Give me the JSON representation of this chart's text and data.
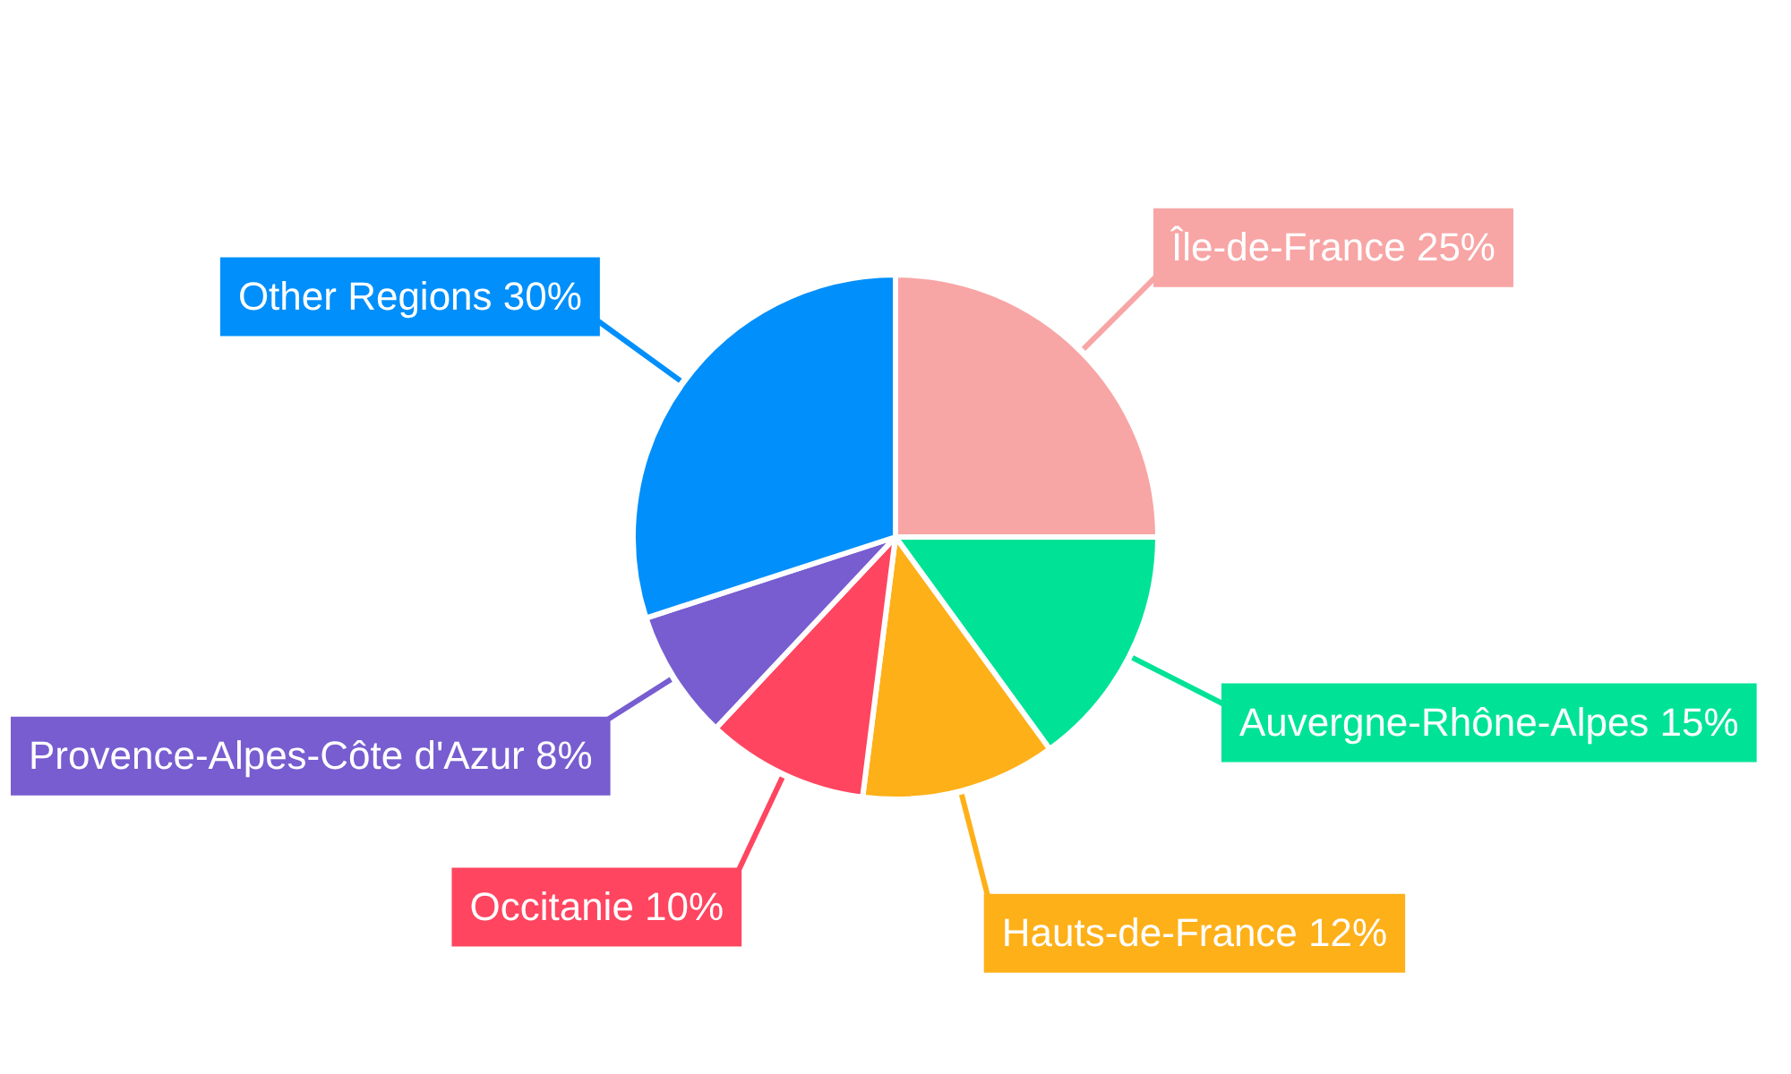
{
  "chart_data": {
    "type": "pie",
    "categories": [
      "Île-de-France",
      "Auvergne-Rhône-Alpes",
      "Hauts-de-France",
      "Occitanie",
      "Provence-Alpes-Côte d'Azur",
      "Other Regions"
    ],
    "values": [
      25,
      15,
      12,
      10,
      8,
      30
    ],
    "colors": [
      "#f8a5a5",
      "#00e396",
      "#feb019",
      "#ff4560",
      "#775dd0",
      "#008ffb"
    ],
    "value_labels": [
      "25%",
      "15%",
      "12%",
      "10%",
      "8%",
      "30%"
    ],
    "legend": false
  }
}
